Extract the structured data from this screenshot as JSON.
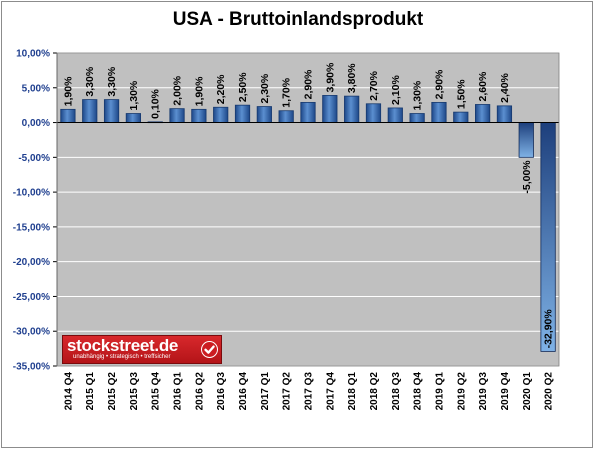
{
  "chart_data": {
    "type": "bar",
    "title": "USA - Bruttoinlandsprodukt",
    "categories": [
      "2014 Q4",
      "2015 Q1",
      "2015 Q2",
      "2015 Q3",
      "2015 Q4",
      "2016 Q1",
      "2016 Q2",
      "2016 Q3",
      "2016 Q4",
      "2017 Q1",
      "2017 Q2",
      "2017 Q3",
      "2017 Q4",
      "2018 Q1",
      "2018 Q2",
      "2018 Q3",
      "2018 Q4",
      "2019 Q1",
      "2019 Q2",
      "2019 Q3",
      "2019 Q4",
      "2020 Q1",
      "2020 Q2"
    ],
    "values": [
      1.9,
      3.3,
      3.3,
      1.3,
      0.1,
      2.0,
      1.9,
      2.2,
      2.5,
      2.3,
      1.7,
      2.9,
      3.9,
      3.8,
      2.7,
      2.1,
      1.3,
      2.9,
      1.5,
      2.6,
      2.4,
      -5.0,
      -32.9
    ],
    "data_labels": [
      "1,90%",
      "3,30%",
      "3,30%",
      "1,30%",
      "0,10%",
      "2,00%",
      "1,90%",
      "2,20%",
      "2,50%",
      "2,30%",
      "1,70%",
      "2,90%",
      "3,90%",
      "3,80%",
      "2,70%",
      "2,10%",
      "1,30%",
      "2,90%",
      "1,50%",
      "2,60%",
      "2,40%",
      "-5,00%",
      "-32,90%"
    ],
    "ylim": [
      -35,
      10
    ],
    "yticks": [
      10,
      5,
      0,
      -5,
      -10,
      -15,
      -20,
      -25,
      -30,
      -35
    ],
    "ytick_labels": [
      "10,00%",
      "5,00%",
      "0,00%",
      "-5,00%",
      "-10,00%",
      "-15,00%",
      "-20,00%",
      "-25,00%",
      "-30,00%",
      "-35,00%"
    ],
    "xlabel": "",
    "ylabel": "",
    "grid": true,
    "colors": {
      "bar_positive": "#3a6fb5",
      "bar_negative": "#1f4f92",
      "plot_background": "#c0c0c0",
      "gridline": "#ffffff",
      "ytick_text": "#1f3f8f"
    }
  },
  "logo": {
    "text": "stockstreet.de",
    "tagline": "unabhängig • strategisch • treffsicher"
  }
}
